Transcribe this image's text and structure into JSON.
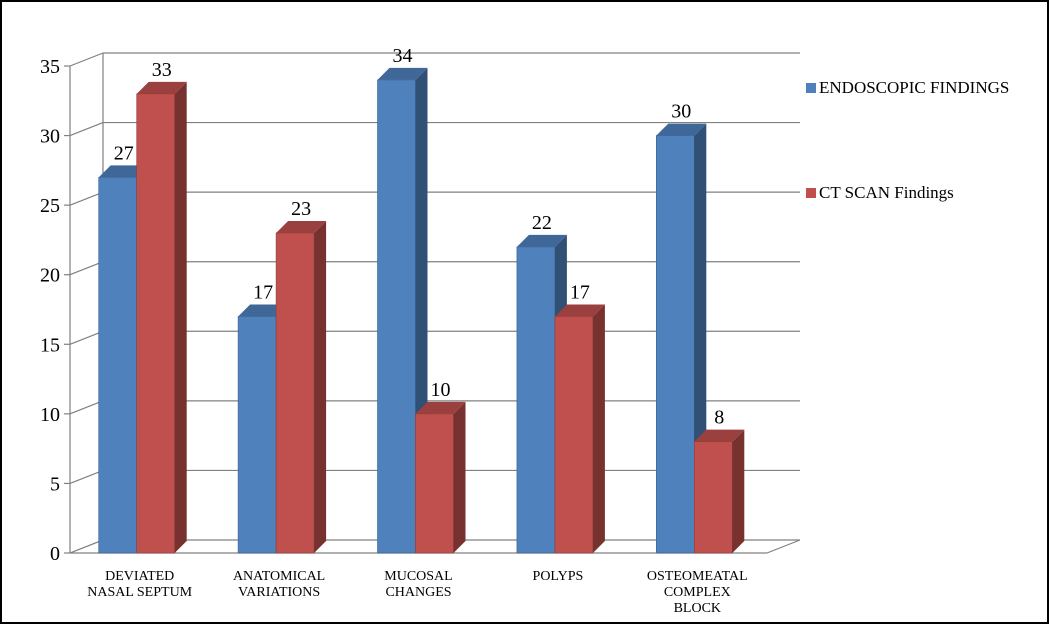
{
  "chart_data": {
    "type": "bar",
    "categories": [
      [
        "DEVIATED",
        "NASAL SEPTUM"
      ],
      [
        "ANATOMICAL",
        "VARIATIONS"
      ],
      [
        "MUCOSAL",
        "CHANGES"
      ],
      [
        "POLYPS"
      ],
      [
        "OSTEOMEATAL",
        "COMPLEX",
        "BLOCK"
      ]
    ],
    "series": [
      {
        "name": "ENDOSCOPIC FINDINGS",
        "values": [
          27,
          17,
          34,
          22,
          30
        ],
        "color": "#4F81BD"
      },
      {
        "name": "CT SCAN Findings",
        "values": [
          33,
          23,
          10,
          17,
          8
        ],
        "color": "#C0504D"
      }
    ],
    "ylim": [
      0,
      35
    ],
    "yticks": [
      0,
      5,
      10,
      15,
      20,
      25,
      30,
      35
    ],
    "grid": true,
    "legend": "right",
    "style": "3d-clustered-column",
    "title": "",
    "xlabel": "",
    "ylabel": ""
  }
}
